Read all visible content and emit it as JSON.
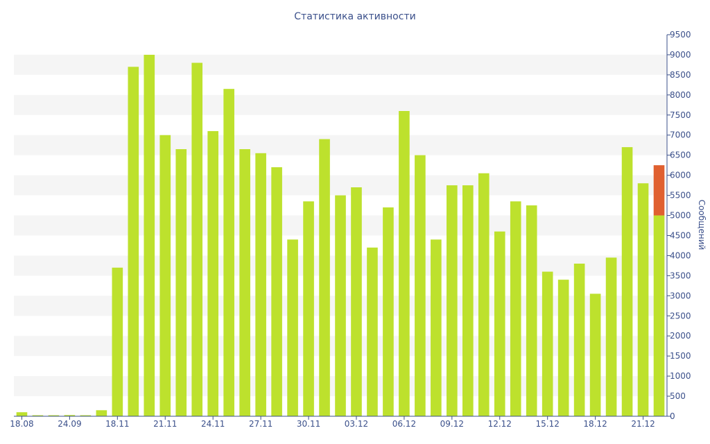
{
  "chart_data": {
    "type": "bar",
    "title": "Статистика активности",
    "ylabel": "Сообщений",
    "xlabel": "",
    "ylim": [
      0,
      9500
    ],
    "y_ticks": [
      0,
      500,
      1000,
      1500,
      2000,
      2500,
      3000,
      3500,
      4000,
      4500,
      5000,
      5500,
      6000,
      6500,
      7000,
      7500,
      8000,
      8500,
      9000,
      9500
    ],
    "x_tick_labels": [
      {
        "label": "18.08",
        "bar_index": 0
      },
      {
        "label": "24.09",
        "bar_index": 3
      },
      {
        "label": "18.11",
        "bar_index": 6
      },
      {
        "label": "21.11",
        "bar_index": 9
      },
      {
        "label": "24.11",
        "bar_index": 12
      },
      {
        "label": "27.11",
        "bar_index": 15
      },
      {
        "label": "30.11",
        "bar_index": 18
      },
      {
        "label": "03.12",
        "bar_index": 21
      },
      {
        "label": "06.12",
        "bar_index": 24
      },
      {
        "label": "09.12",
        "bar_index": 27
      },
      {
        "label": "12.12",
        "bar_index": 30
      },
      {
        "label": "15.12",
        "bar_index": 33
      },
      {
        "label": "18.12",
        "bar_index": 36
      },
      {
        "label": "21.12",
        "bar_index": 39
      }
    ],
    "values": [
      100,
      25,
      25,
      30,
      25,
      150,
      3700,
      8700,
      9000,
      7000,
      6650,
      8800,
      7100,
      8150,
      6650,
      6550,
      6200,
      4400,
      5350,
      6900,
      5500,
      5700,
      4200,
      5200,
      7600,
      6500,
      4400,
      5750,
      5750,
      6050,
      4600,
      5350,
      5250,
      3600,
      3400,
      3800,
      3050,
      3950,
      6700,
      5800,
      5000
    ],
    "highlight": {
      "bar_index": 40,
      "value": 1250
    },
    "colors": {
      "bar": "#bde12d",
      "highlight": "#e06030",
      "band": "#f5f5f5",
      "axis": "#3a4f8a"
    },
    "grid": "horizontal bands",
    "legend": "none"
  }
}
